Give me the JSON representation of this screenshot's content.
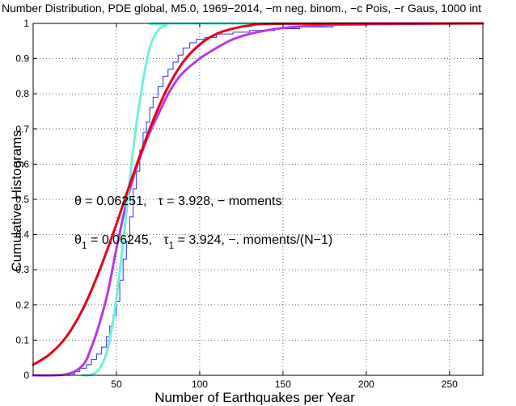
{
  "chart_data": {
    "type": "line",
    "title": "Number Distribution, PDE global, M5.0, 1969−2014, −m neg. binom., −c Pois, −r Gaus, 1000 int",
    "xlabel": "Number of Earthquakes per Year",
    "ylabel": "Cumulative Histograms",
    "xlim": [
      0,
      270
    ],
    "ylim": [
      0,
      1
    ],
    "xticks": [
      50,
      100,
      150,
      200,
      250
    ],
    "yticks": [
      0,
      0.1,
      0.2,
      0.3,
      0.4,
      0.5,
      0.6,
      0.7,
      0.8,
      0.9,
      1
    ],
    "ytick_labels": [
      "0",
      "0.1",
      "0.2",
      "0.3",
      "0.4",
      "0.5",
      "0.6",
      "0.7",
      "0.8",
      "0.9",
      "1"
    ],
    "grid": true,
    "annotations": {
      "line1": {
        "theta_sym": "θ",
        "theta_val": " = 0.06251,",
        "tau_sym": "τ",
        "tau_val": " = 3.928,  − moments"
      },
      "line2": {
        "theta_sym": "θ",
        "theta_sub": "1",
        "theta_val": " = 0.06245,",
        "tau_sym": "τ",
        "tau_sub": "1",
        "tau_val": " = 3.924,  −. moments/(N−1)"
      }
    },
    "series": [
      {
        "name": "empirical cumulative histogram",
        "color": "#2233ee",
        "style": "stairs",
        "width": 1,
        "points": [
          [
            17,
            0
          ],
          [
            22,
            0.004
          ],
          [
            25,
            0.01
          ],
          [
            28,
            0.02
          ],
          [
            32,
            0.03
          ],
          [
            35,
            0.045
          ],
          [
            38,
            0.06
          ],
          [
            41,
            0.08
          ],
          [
            44,
            0.11
          ],
          [
            46,
            0.14
          ],
          [
            48,
            0.17
          ],
          [
            50,
            0.21
          ],
          [
            52,
            0.27
          ],
          [
            54,
            0.33
          ],
          [
            56,
            0.38
          ],
          [
            58,
            0.45
          ],
          [
            60,
            0.53
          ],
          [
            62,
            0.58
          ],
          [
            64,
            0.64
          ],
          [
            66,
            0.69
          ],
          [
            68,
            0.72
          ],
          [
            70,
            0.76
          ],
          [
            72,
            0.79
          ],
          [
            75,
            0.82
          ],
          [
            78,
            0.85
          ],
          [
            81,
            0.87
          ],
          [
            84,
            0.89
          ],
          [
            87,
            0.91
          ],
          [
            90,
            0.93
          ],
          [
            94,
            0.945
          ],
          [
            98,
            0.955
          ],
          [
            103,
            0.96
          ],
          [
            110,
            0.97
          ],
          [
            120,
            0.975
          ],
          [
            130,
            0.98
          ],
          [
            145,
            0.985
          ],
          [
            160,
            0.99
          ],
          [
            180,
            0.995
          ],
          [
            200,
            0.998
          ],
          [
            230,
            1.0
          ],
          [
            270,
            1.0
          ]
        ]
      },
      {
        "name": "neg. binom.",
        "style": "m",
        "color": "#b33be6",
        "width": 3,
        "points": [
          [
            0,
            0
          ],
          [
            20,
            0.003
          ],
          [
            30,
            0.03
          ],
          [
            35,
            0.08
          ],
          [
            40,
            0.15
          ],
          [
            45,
            0.24
          ],
          [
            50,
            0.36
          ],
          [
            55,
            0.47
          ],
          [
            60,
            0.56
          ],
          [
            65,
            0.63
          ],
          [
            70,
            0.69
          ],
          [
            75,
            0.74
          ],
          [
            80,
            0.79
          ],
          [
            85,
            0.83
          ],
          [
            90,
            0.86
          ],
          [
            100,
            0.9
          ],
          [
            110,
            0.93
          ],
          [
            120,
            0.955
          ],
          [
            130,
            0.97
          ],
          [
            140,
            0.98
          ],
          [
            150,
            0.987
          ],
          [
            170,
            0.994
          ],
          [
            200,
            0.998
          ],
          [
            270,
            1.0
          ]
        ]
      },
      {
        "name": "Pois",
        "style": "c",
        "color": "#6ff0dc",
        "width": 3,
        "points": [
          [
            30,
            0
          ],
          [
            35,
            0.002
          ],
          [
            40,
            0.02
          ],
          [
            45,
            0.08
          ],
          [
            50,
            0.22
          ],
          [
            55,
            0.42
          ],
          [
            60,
            0.64
          ],
          [
            65,
            0.81
          ],
          [
            70,
            0.93
          ],
          [
            75,
            0.98
          ],
          [
            80,
            0.995
          ],
          [
            85,
            1.0
          ],
          [
            270,
            1.0
          ]
        ]
      },
      {
        "name": "Gaus",
        "style": "r",
        "color": "#e5001a",
        "width": 3,
        "points": [
          [
            0,
            0.03
          ],
          [
            10,
            0.06
          ],
          [
            20,
            0.11
          ],
          [
            30,
            0.19
          ],
          [
            40,
            0.3
          ],
          [
            50,
            0.43
          ],
          [
            60,
            0.57
          ],
          [
            70,
            0.7
          ],
          [
            80,
            0.81
          ],
          [
            90,
            0.89
          ],
          [
            100,
            0.94
          ],
          [
            110,
            0.97
          ],
          [
            120,
            0.985
          ],
          [
            130,
            0.994
          ],
          [
            150,
            0.999
          ],
          [
            270,
            1.0
          ]
        ]
      }
    ]
  }
}
